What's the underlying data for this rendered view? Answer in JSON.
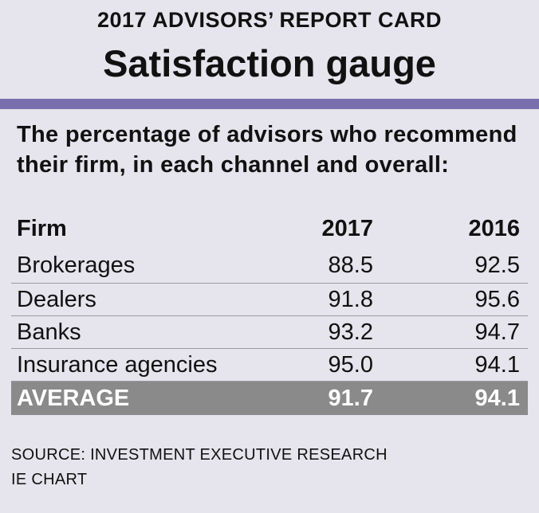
{
  "header": {
    "kicker": "2017 ADVISORS’ REPORT CARD",
    "title": "Satisfaction gauge"
  },
  "intro": "The percentage of advisors who recommend their firm, in each channel and overall:",
  "chart_data": {
    "type": "table",
    "columns": [
      "Firm",
      "2017",
      "2016"
    ],
    "rows": [
      {
        "firm": "Brokerages",
        "y2017": "88.5",
        "y2016": "92.5"
      },
      {
        "firm": "Dealers",
        "y2017": "91.8",
        "y2016": "95.6"
      },
      {
        "firm": "Banks",
        "y2017": "93.2",
        "y2016": "94.7"
      },
      {
        "firm": "Insurance agencies",
        "y2017": "95.0",
        "y2016": "94.1"
      }
    ],
    "average": {
      "label": "AVERAGE",
      "y2017": "91.7",
      "y2016": "94.1"
    }
  },
  "footer": {
    "source": "SOURCE: INVESTMENT EXECUTIVE RESEARCH",
    "credit": "IE CHART"
  },
  "colors": {
    "background": "#e6e4ec",
    "rule": "#7a6fae",
    "average_band": "#8a8a8a"
  }
}
